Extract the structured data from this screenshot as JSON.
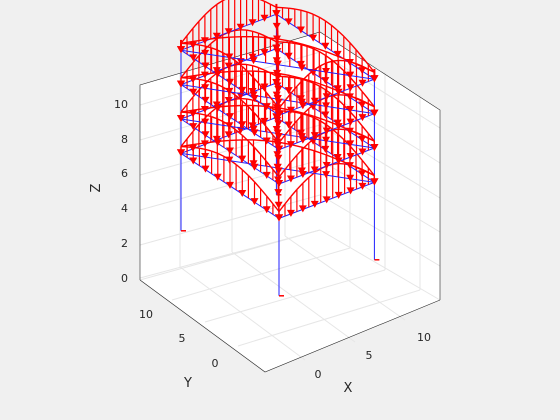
{
  "chart_data": {
    "type": "3d-structure-plot",
    "title": "",
    "xlabel": "X",
    "ylabel": "Y",
    "zlabel": "Z",
    "x_ticks": [
      "0",
      "5",
      "10"
    ],
    "y_ticks": [
      "0",
      "5",
      "10"
    ],
    "z_ticks": [
      "0",
      "2",
      "4",
      "6",
      "8",
      "10"
    ],
    "xlim": [
      -3,
      13
    ],
    "ylim": [
      -3,
      13
    ],
    "zlim": [
      0,
      11
    ],
    "grid": true,
    "colors": {
      "frame": "#2020ff",
      "arrows": "#ff0000",
      "background": "#f0f0f0",
      "axes": "#ffffff"
    }
  }
}
